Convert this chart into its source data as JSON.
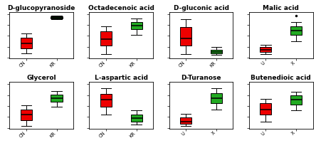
{
  "titles": [
    "D-glucopyranoside",
    "Octadecenoic acid",
    "D-gluconic acid",
    "Malic acid",
    "Glycerol",
    "L-aspartic acid",
    "D-Turanose",
    "Butenedioic acid"
  ],
  "xlabels": [
    [
      "CN",
      "KR"
    ],
    [
      "CN",
      "KR"
    ],
    [
      "CN",
      "KR"
    ],
    [
      "U",
      "X"
    ],
    [
      "CN",
      "KR"
    ],
    [
      "CN",
      "KR"
    ],
    [
      "U",
      "X"
    ],
    [
      "U",
      "X"
    ]
  ],
  "red_color": "#EE0000",
  "green_color": "#22AA22",
  "dark_green_color": "#005500",
  "boxes": [
    {
      "red": {
        "whislo": 0.1,
        "q1": 0.22,
        "med": 0.32,
        "q3": 0.45,
        "whishi": 0.55,
        "fliers_lo": [],
        "fliers_hi": []
      },
      "green": {
        "whislo": 0.88,
        "q1": 0.9,
        "med": 0.92,
        "q3": 0.94,
        "whishi": 0.96,
        "fliers_lo": [],
        "fliers_hi": [],
        "is_dark": true
      }
    },
    {
      "red": {
        "whislo": 0.08,
        "q1": 0.28,
        "med": 0.42,
        "q3": 0.6,
        "whishi": 0.72,
        "fliers_lo": [],
        "fliers_hi": []
      },
      "green": {
        "whislo": 0.52,
        "q1": 0.65,
        "med": 0.74,
        "q3": 0.82,
        "whishi": 0.9,
        "fliers_lo": [],
        "fliers_hi": []
      }
    },
    {
      "red": {
        "whislo": 0.08,
        "q1": 0.28,
        "med": 0.44,
        "q3": 0.7,
        "whishi": 0.88,
        "fliers_lo": [],
        "fliers_hi": []
      },
      "green": {
        "whislo": 0.06,
        "q1": 0.1,
        "med": 0.13,
        "q3": 0.18,
        "whishi": 0.24,
        "fliers_lo": [],
        "fliers_hi": []
      }
    },
    {
      "red": {
        "whislo": 0.08,
        "q1": 0.13,
        "med": 0.18,
        "q3": 0.24,
        "whishi": 0.3,
        "fliers_lo": [],
        "fliers_hi": []
      },
      "green": {
        "whislo": 0.38,
        "q1": 0.52,
        "med": 0.62,
        "q3": 0.72,
        "whishi": 0.82,
        "fliers_lo": [],
        "fliers_hi": [
          0.96
        ]
      }
    },
    {
      "red": {
        "whislo": 0.04,
        "q1": 0.18,
        "med": 0.3,
        "q3": 0.42,
        "whishi": 0.52,
        "fliers_lo": [],
        "fliers_hi": []
      },
      "green": {
        "whislo": 0.48,
        "q1": 0.6,
        "med": 0.68,
        "q3": 0.76,
        "whishi": 0.84,
        "fliers_lo": [],
        "fliers_hi": []
      }
    },
    {
      "red": {
        "whislo": 0.3,
        "q1": 0.48,
        "med": 0.64,
        "q3": 0.78,
        "whishi": 0.9,
        "fliers_lo": [],
        "fliers_hi": []
      },
      "green": {
        "whislo": 0.08,
        "q1": 0.14,
        "med": 0.22,
        "q3": 0.3,
        "whishi": 0.4,
        "fliers_lo": [],
        "fliers_hi": []
      }
    },
    {
      "red": {
        "whislo": 0.05,
        "q1": 0.1,
        "med": 0.15,
        "q3": 0.24,
        "whishi": 0.32,
        "fliers_lo": [],
        "fliers_hi": []
      },
      "green": {
        "whislo": 0.42,
        "q1": 0.56,
        "med": 0.68,
        "q3": 0.8,
        "whishi": 0.9,
        "fliers_lo": [],
        "fliers_hi": []
      }
    },
    {
      "red": {
        "whislo": 0.15,
        "q1": 0.3,
        "med": 0.42,
        "q3": 0.56,
        "whishi": 0.66,
        "fliers_lo": [],
        "fliers_hi": []
      },
      "green": {
        "whislo": 0.4,
        "q1": 0.54,
        "med": 0.64,
        "q3": 0.74,
        "whishi": 0.82,
        "fliers_lo": [],
        "fliers_hi": []
      }
    }
  ],
  "title_fontsize": 6.5,
  "tick_fontsize": 4.8,
  "box_width": 0.38,
  "linewidth": 0.7
}
